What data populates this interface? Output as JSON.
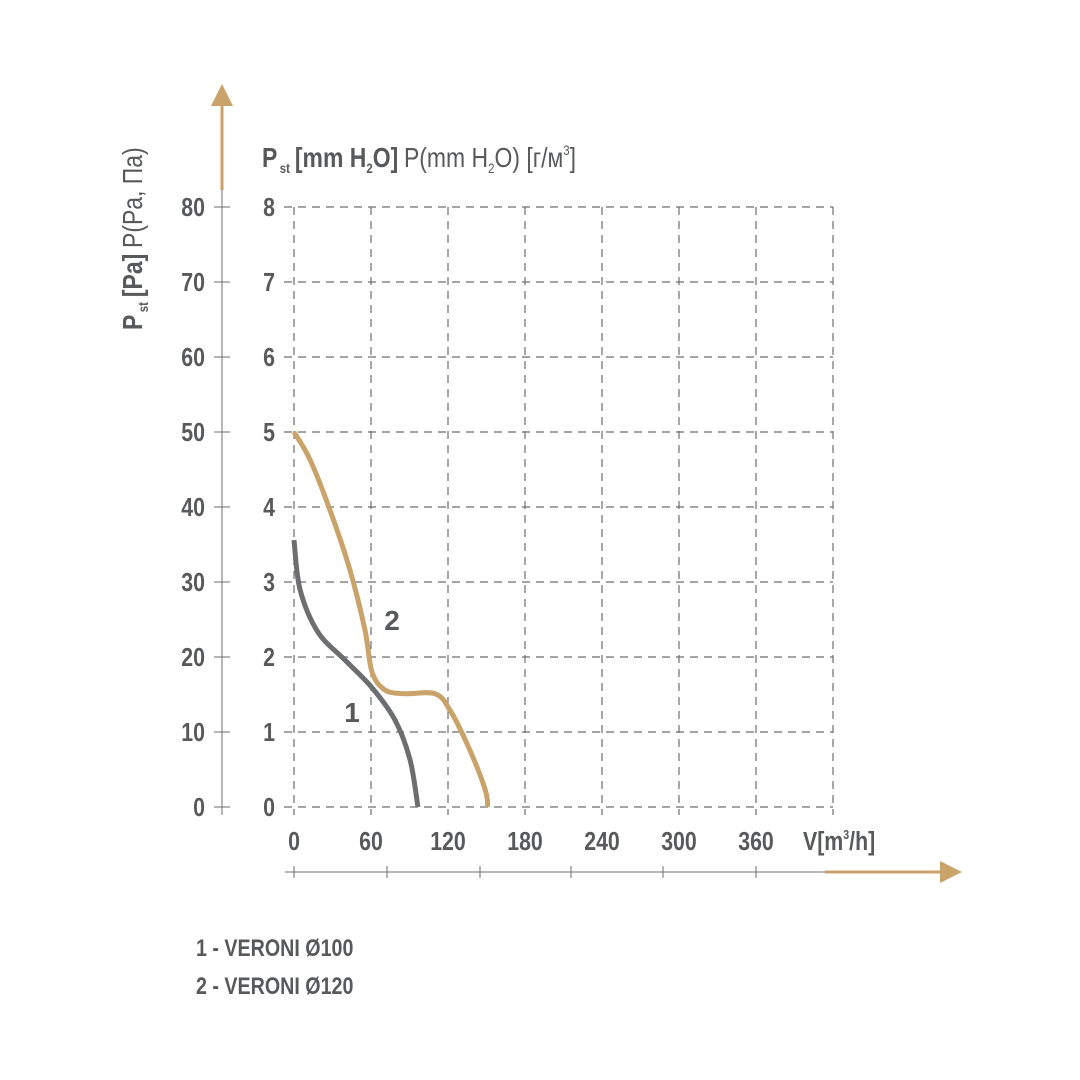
{
  "chart_data": {
    "type": "line",
    "title": {
      "bold": "P",
      "bold_sub": "st",
      "bold_rest": "[mm H",
      "bold_sub2": "2",
      "bold_end": "O]",
      "normal": "P(mm H",
      "normal_sub": "2",
      "normal_end": "O) [г/м",
      "normal_sup": "3",
      "normal_close": "]"
    },
    "ylabel": {
      "bold": "P",
      "bold_sub": "st",
      "bold_rest": "[Pa]",
      "normal": "P(Pa, Па)"
    },
    "xlabel": {
      "pre": "V[m",
      "sup": "3",
      "post": "/h]"
    },
    "x_ticks": [
      "0",
      "60",
      "120",
      "180",
      "240",
      "300",
      "360"
    ],
    "y_ticks_pa": [
      "0",
      "10",
      "20",
      "30",
      "40",
      "50",
      "60",
      "70",
      "80"
    ],
    "y_ticks_mm": [
      "0",
      "1",
      "2",
      "3",
      "4",
      "5",
      "6",
      "7",
      "8"
    ],
    "xlim": [
      0,
      420
    ],
    "ylim_pa": [
      0,
      80
    ],
    "ylim_mm": [
      0,
      8
    ],
    "grid": true,
    "series": [
      {
        "name": "1",
        "color": "#6d6e70",
        "points_pa": [
          [
            0,
            35.6
          ],
          [
            4.7,
            29
          ],
          [
            18.7,
            23.3
          ],
          [
            39.7,
            19.6
          ],
          [
            60.8,
            15.9
          ],
          [
            78.7,
            11.6
          ],
          [
            90.4,
            6.3
          ],
          [
            96.6,
            0
          ]
        ]
      },
      {
        "name": "2",
        "color": "#c9a36a",
        "points_pa": [
          [
            0,
            50
          ],
          [
            12.5,
            46.3
          ],
          [
            28,
            39.6
          ],
          [
            43.6,
            31.6
          ],
          [
            55.3,
            23.6
          ],
          [
            60.8,
            18
          ],
          [
            70.9,
            15.6
          ],
          [
            86.5,
            15.1
          ],
          [
            109.9,
            15.1
          ],
          [
            121.6,
            12.9
          ],
          [
            137,
            7.6
          ],
          [
            149,
            2.3
          ],
          [
            151,
            0
          ]
        ]
      }
    ],
    "legend": [
      "1 - VERONI Ø100",
      "2 - VERONI Ø120"
    ],
    "legend_placement": "bottom-left",
    "axis_arrow_color": "#c9a36a"
  }
}
